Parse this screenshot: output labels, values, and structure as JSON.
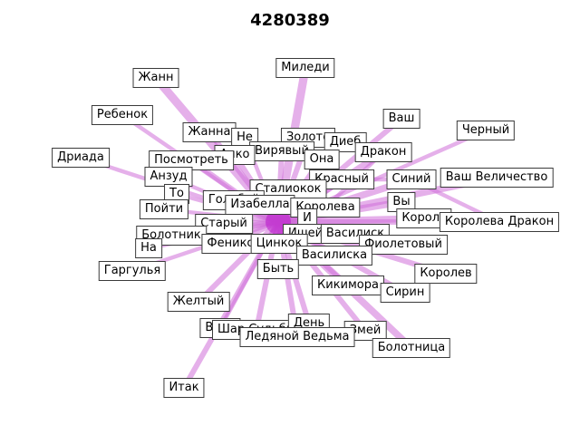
{
  "title": "4280389",
  "colors": {
    "edge": "#d070d8",
    "hub": "#b400c8",
    "label_border": "#3a3a3a"
  },
  "hub": "Быть",
  "nodes": [
    {
      "id": "Жанн",
      "label": "Жанн"
    },
    {
      "id": "Миледи",
      "label": "Миледи"
    },
    {
      "id": "Ребенок",
      "label": "Ребенок"
    },
    {
      "id": "Ваш",
      "label": "Ваш"
    },
    {
      "id": "Черный",
      "label": "Черный"
    },
    {
      "id": "Жанна",
      "label": "Жанна"
    },
    {
      "id": "Не",
      "label": "Не"
    },
    {
      "id": "Золото",
      "label": "Золото"
    },
    {
      "id": "Дриада",
      "label": "Дриада"
    },
    {
      "id": "Вирявый",
      "label": "Вирявый"
    },
    {
      "id": "Диеб",
      "label": "Диеб"
    },
    {
      "id": "Алко",
      "label": "Алко"
    },
    {
      "id": "Она",
      "label": "Она"
    },
    {
      "id": "Дракон",
      "label": "Дракон"
    },
    {
      "id": "Посмотреть",
      "label": "Посмотреть"
    },
    {
      "id": "Ваш Величество",
      "label": "Ваш Величество"
    },
    {
      "id": "Анзуд",
      "label": "Анзуд"
    },
    {
      "id": "Красный",
      "label": "Красный"
    },
    {
      "id": "Синий",
      "label": "Синий"
    },
    {
      "id": "Сталиокок",
      "label": "Сталиокок"
    },
    {
      "id": "То",
      "label": "То"
    },
    {
      "id": "Голубой",
      "label": "Голубой"
    },
    {
      "id": "Изабелла",
      "label": "Изабелла"
    },
    {
      "id": "Вы",
      "label": "Вы"
    },
    {
      "id": "Пойти",
      "label": "Пойти"
    },
    {
      "id": "Королева",
      "label": "Королева"
    },
    {
      "id": "Король",
      "label": "Король"
    },
    {
      "id": "Королева Дракон",
      "label": "Королева Дракон"
    },
    {
      "id": "Старый",
      "label": "Старый"
    },
    {
      "id": "И",
      "label": "И"
    },
    {
      "id": "Болотник",
      "label": "Болотник"
    },
    {
      "id": "Ишейка",
      "label": "Ишейка"
    },
    {
      "id": "Василиск",
      "label": "Василиск"
    },
    {
      "id": "Феникс",
      "label": "Феникс"
    },
    {
      "id": "Цинкок",
      "label": "Цинкок"
    },
    {
      "id": "Фиолетовый",
      "label": "Фиолетовый"
    },
    {
      "id": "На",
      "label": "На"
    },
    {
      "id": "Василиска",
      "label": "Василиска"
    },
    {
      "id": "Гаргулья",
      "label": "Гаргулья"
    },
    {
      "id": "Быть",
      "label": "Быть"
    },
    {
      "id": "Королев",
      "label": "Королев"
    },
    {
      "id": "Кикимора",
      "label": "Кикимора"
    },
    {
      "id": "Сирин",
      "label": "Сирин"
    },
    {
      "id": "Желтый",
      "label": "Желтый"
    },
    {
      "id": "Вера",
      "label": "Вера"
    },
    {
      "id": "Шар Судьбы",
      "label": "Шар Судьбы"
    },
    {
      "id": "День",
      "label": "День"
    },
    {
      "id": "Змей",
      "label": "Змей"
    },
    {
      "id": "Ледяной Ведьма",
      "label": "Ледяной Ведьма"
    },
    {
      "id": "Болотница",
      "label": "Болотница"
    },
    {
      "id": "Итак",
      "label": "Итак"
    }
  ],
  "edges": [
    {
      "source": "Быть",
      "target": "Жанн",
      "weight": 5
    },
    {
      "source": "Быть",
      "target": "Миледи",
      "weight": 5
    },
    {
      "source": "Быть",
      "target": "Ребенок",
      "weight": 2
    },
    {
      "source": "Быть",
      "target": "Ваш",
      "weight": 3
    },
    {
      "source": "Быть",
      "target": "Черный",
      "weight": 2
    },
    {
      "source": "Быть",
      "target": "Жанна",
      "weight": 3
    },
    {
      "source": "Быть",
      "target": "Не",
      "weight": 2
    },
    {
      "source": "Быть",
      "target": "Золото",
      "weight": 3
    },
    {
      "source": "Быть",
      "target": "Дриада",
      "weight": 2
    },
    {
      "source": "Быть",
      "target": "Вирявый",
      "weight": 3
    },
    {
      "source": "Быть",
      "target": "Диеб",
      "weight": 2
    },
    {
      "source": "Быть",
      "target": "Алко",
      "weight": 3
    },
    {
      "source": "Быть",
      "target": "Она",
      "weight": 4
    },
    {
      "source": "Быть",
      "target": "Дракон",
      "weight": 4
    },
    {
      "source": "Быть",
      "target": "Посмотреть",
      "weight": 3
    },
    {
      "source": "Быть",
      "target": "Ваш Величество",
      "weight": 4
    },
    {
      "source": "Быть",
      "target": "Анзуд",
      "weight": 2
    },
    {
      "source": "Быть",
      "target": "Красный",
      "weight": 4
    },
    {
      "source": "Быть",
      "target": "Синий",
      "weight": 4
    },
    {
      "source": "Быть",
      "target": "Сталиокок",
      "weight": 3
    },
    {
      "source": "Быть",
      "target": "То",
      "weight": 2
    },
    {
      "source": "Быть",
      "target": "Голубой",
      "weight": 3
    },
    {
      "source": "Быть",
      "target": "Изабелла",
      "weight": 3
    },
    {
      "source": "Быть",
      "target": "Вы",
      "weight": 4
    },
    {
      "source": "Быть",
      "target": "Пойти",
      "weight": 2
    },
    {
      "source": "Быть",
      "target": "Королева",
      "weight": 4
    },
    {
      "source": "Быть",
      "target": "Король",
      "weight": 4
    },
    {
      "source": "Быть",
      "target": "Королева Дракон",
      "weight": 3
    },
    {
      "source": "Быть",
      "target": "Старый",
      "weight": 3
    },
    {
      "source": "Быть",
      "target": "И",
      "weight": 3
    },
    {
      "source": "Быть",
      "target": "Болотник",
      "weight": 3
    },
    {
      "source": "Быть",
      "target": "Ишейка",
      "weight": 4
    },
    {
      "source": "Быть",
      "target": "Василиск",
      "weight": 4
    },
    {
      "source": "Быть",
      "target": "Феникс",
      "weight": 3
    },
    {
      "source": "Быть",
      "target": "Цинкок",
      "weight": 4
    },
    {
      "source": "Быть",
      "target": "Фиолетовый",
      "weight": 4
    },
    {
      "source": "Быть",
      "target": "На",
      "weight": 2
    },
    {
      "source": "Быть",
      "target": "Василиска",
      "weight": 3
    },
    {
      "source": "Быть",
      "target": "Гаргулья",
      "weight": 2
    },
    {
      "source": "Быть",
      "target": "Королев",
      "weight": 3
    },
    {
      "source": "Быть",
      "target": "Кикимора",
      "weight": 3
    },
    {
      "source": "Быть",
      "target": "Сирин",
      "weight": 3
    },
    {
      "source": "Быть",
      "target": "Желтый",
      "weight": 3
    },
    {
      "source": "Быть",
      "target": "Вера",
      "weight": 2
    },
    {
      "source": "Быть",
      "target": "Шар Судьбы",
      "weight": 3
    },
    {
      "source": "Быть",
      "target": "День",
      "weight": 3
    },
    {
      "source": "Быть",
      "target": "Змей",
      "weight": 3
    },
    {
      "source": "Быть",
      "target": "Ледяной Ведьма",
      "weight": 3
    },
    {
      "source": "Быть",
      "target": "Болотница",
      "weight": 4
    },
    {
      "source": "Быть",
      "target": "Итак",
      "weight": 3
    },
    {
      "source": "Королева",
      "target": "Дракон",
      "weight": 2
    },
    {
      "source": "Синий",
      "target": "Королева Дракон",
      "weight": 2
    },
    {
      "source": "Король",
      "target": "Вы",
      "weight": 2
    },
    {
      "source": "Голубой",
      "target": "Изабелла",
      "weight": 2
    },
    {
      "source": "Красный",
      "target": "Синий",
      "weight": 2
    }
  ]
}
